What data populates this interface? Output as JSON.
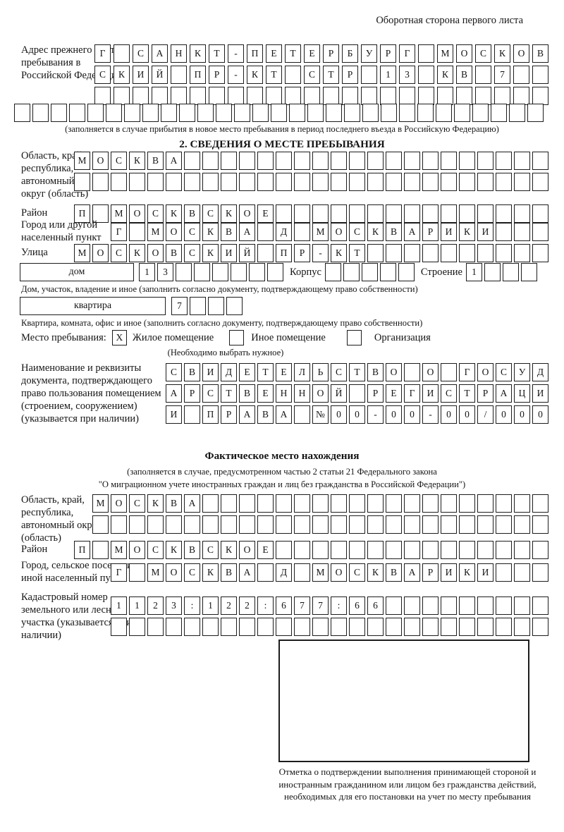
{
  "page": {
    "header": "Оборотная сторона первого листа"
  },
  "prev_address": {
    "label": "Адрес прежнего места пребывания в Российской Федерации",
    "row1": {
      "text": "Г САНКТ-ПЕТЕРБУРГ МОСКОВ",
      "cols": 24
    },
    "row2": {
      "text": "СКИЙ ПР-КТ СТР 13 КВ 7",
      "cols": 24
    },
    "row3": {
      "text": "",
      "cols": 24
    },
    "row4": {
      "text": "",
      "cols": 29
    },
    "caption": "(заполняется в случае прибытия в новое место пребывания в период последнего въезда в Российскую Федерацию)"
  },
  "section2": {
    "title": "2. СВЕДЕНИЯ О МЕСТЕ ПРЕБЫВАНИЯ",
    "region_label": "Область, край, республика, автономный округ (область)",
    "region_row1": {
      "text": "МОСКВА",
      "cols": 26
    },
    "region_row2": {
      "text": "",
      "cols": 26
    },
    "district_label": "Район",
    "district_row": {
      "text": "П МОСКВСКОЕ",
      "cols": 26
    },
    "city_label": "Город или другой населенный пункт",
    "city_row": {
      "text": "Г МОСКВА Д МОСКВАРИКИ",
      "cols": 24
    },
    "street_label": "Улица",
    "street_row": {
      "text": "МОСКОВСКИЙ ПР-КТ",
      "cols": 26
    },
    "house_box_label": "дом",
    "house_row": {
      "text": "13",
      "cols": 8
    },
    "korpus_label": "Корпус",
    "korpus_row": {
      "text": "",
      "cols": 5
    },
    "stroenie_label": "Строение",
    "stroenie_row": {
      "text": "1",
      "cols": 4
    },
    "house_caption": "Дом, участок, владение и иное (заполнить согласно документу, подтверждающему право собственности)",
    "apt_box_label": "квартира",
    "apt_row": {
      "text": "7",
      "cols": 4
    },
    "apt_caption": "Квартира, комната, офис и иное (заполнить согласно документу, подтверждающему право собственности)",
    "stay_label": "Место пребывания:",
    "stay_options": [
      {
        "label": "Жилое помещение",
        "mark": "X"
      },
      {
        "label": "Иное помещение",
        "mark": ""
      },
      {
        "label": "Организация",
        "mark": ""
      }
    ],
    "stay_caption": "(Необходимо выбрать нужное)",
    "doc_label": "Наименование и реквизиты документа, подтверждающего право пользования помещением (строением, сооружением) (указывается при наличии)",
    "doc_row1": {
      "text": "СВИДЕТЕЛЬСТВО О ГОСУД",
      "cols": 21
    },
    "doc_row2": {
      "text": "АРСТВЕННОЙ РЕГИСТРАЦИ",
      "cols": 21
    },
    "doc_row3": {
      "text": "И ПРАВА №00-00-00/000",
      "cols": 21
    }
  },
  "actual_location": {
    "title": "Фактическое место нахождения",
    "caption1": "(заполняется в случае, предусмотренном частью 2 статьи 21 Федерального закона",
    "caption2": "\"О миграционном учете иностранных граждан и лиц без гражданства в Российской Федерации\")",
    "region_label": "Область, край, республика, автономный округ (область)",
    "region_row1": {
      "text": "МОСКВА",
      "cols": 25
    },
    "region_row2": {
      "text": "",
      "cols": 25
    },
    "district_label": "Район",
    "district_row": {
      "text": "П МОСКВСКОЕ",
      "cols": 26
    },
    "city_label": "Город, сельское поселение, иной населенный пункт",
    "city_row": {
      "text": "Г МОСКВА Д МОСКВАРИКИ",
      "cols": 24
    },
    "cadastral_label": "Кадастровый номер земельного или лесного участка (указывается при наличии)",
    "cadastral_row1": {
      "text": "1123:122:677:66",
      "cols": 24
    },
    "cadastral_row2": {
      "text": "",
      "cols": 24
    },
    "stamp_note": "Отметка о подтверждении выполнения принимающей стороной и иностранным гражданином или лицом без гражданства действий, необходимых для его постановки на учет по месту пребывания"
  }
}
